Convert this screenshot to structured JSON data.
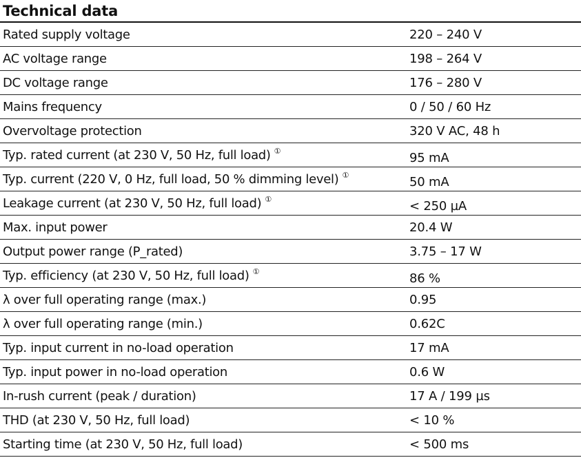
{
  "title": "Technical data",
  "footnote_marker": "①",
  "rows": [
    {
      "label": "Rated supply voltage",
      "value": "220 – 240 V"
    },
    {
      "label": "AC voltage range",
      "value": "198 – 264 V"
    },
    {
      "label": "DC voltage range",
      "value": "176 – 280 V"
    },
    {
      "label": "Mains frequency",
      "value": "0 / 50 / 60 Hz"
    },
    {
      "label": "Overvoltage protection",
      "value": "320 V AC, 48 h"
    },
    {
      "label": "Typ. rated current (at 230 V, 50 Hz, full load)",
      "value": "95 mA",
      "note": true
    },
    {
      "label": "Typ. current (220 V, 0 Hz, full load, 50 % dimming level)",
      "value": "50 mA",
      "note": true
    },
    {
      "label": "Leakage current (at 230 V, 50 Hz, full load)",
      "value": "< 250 µA",
      "note": true
    },
    {
      "label": "Max. input power",
      "value": "20.4 W"
    },
    {
      "label": "Output power range (P_rated)",
      "value": "3.75 – 17 W"
    },
    {
      "label": "Typ. efficiency (at 230 V, 50 Hz, full load)",
      "value": "86 %",
      "note": true
    },
    {
      "label": "λ over full operating range (max.)",
      "value": "0.95"
    },
    {
      "label": "λ over full operating range (min.)",
      "value": "0.62C"
    },
    {
      "label": "Typ. input current in no-load operation",
      "value": "17 mA"
    },
    {
      "label": "Typ. input power in no-load operation",
      "value": "0.6 W"
    },
    {
      "label": "In-rush current (peak / duration)",
      "value": "17 A / 199 µs"
    },
    {
      "label": "THD (at 230 V, 50 Hz, full load)",
      "value": "< 10 %"
    },
    {
      "label": "Starting time (at 230 V, 50 Hz, full load)",
      "value": "< 500 ms"
    }
  ]
}
